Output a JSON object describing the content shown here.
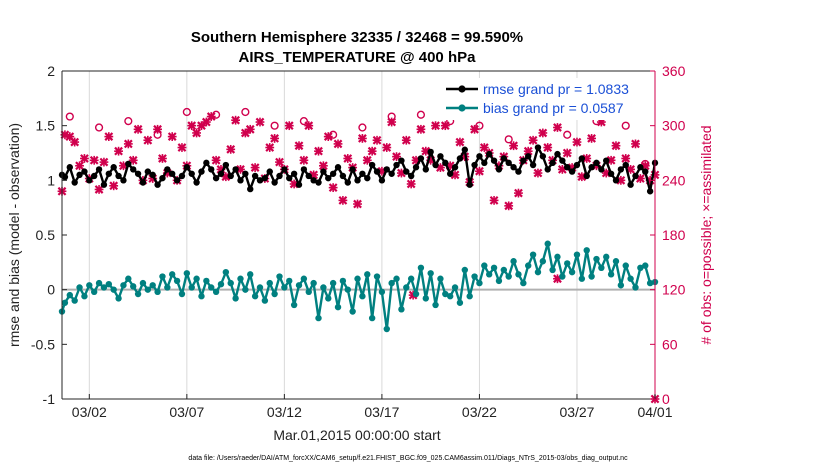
{
  "chart_data": {
    "type": "line",
    "title": "Southern Hemisphere 32335 / 32468 = 99.590%",
    "subtitle": "AIRS_TEMPERATURE @ 400 hPa",
    "xlabel": "Mar.01,2015 00:00:00 start",
    "ylabel": "rmse and bias (model - observation)",
    "y2label": "# of obs: o=possible; ×=assimilated",
    "footnote": "data file: /Users/raeder/DAI/ATM_forcXX/CAM6_setup/f.e21.FHIST_BGC.f09_025.CAM6assim.011/Diags_NTrS_2015-03/obs_diag_output.nc",
    "xlim": [
      0.6,
      31.0
    ],
    "ylim": [
      -1,
      2
    ],
    "y2lim": [
      0,
      360
    ],
    "x_ticks": [
      2,
      7,
      12,
      17,
      22,
      27,
      31
    ],
    "x_tick_labels": [
      "03/02",
      "03/07",
      "03/12",
      "03/17",
      "03/22",
      "03/27",
      "04/01"
    ],
    "y_ticks": [
      -1,
      -0.5,
      0,
      0.5,
      1,
      1.5,
      2
    ],
    "y_tick_labels": [
      "-1",
      "-0.5",
      "0",
      "0.5",
      "1",
      "1.5",
      "2"
    ],
    "y2_ticks": [
      0,
      60,
      120,
      180,
      240,
      300,
      360
    ],
    "y2_tick_labels": [
      "0",
      "60",
      "120",
      "180",
      "240",
      "300",
      "360"
    ],
    "legend_position": "top-right",
    "grid": "vertical",
    "colors": {
      "rmse": "#000000",
      "bias": "#008080",
      "obs": "#d0004d",
      "zero_line": "#b0b0b0",
      "grid": "#d9d9d9"
    },
    "series": [
      {
        "name": "rmse grand pr = 1.0833",
        "axis": "left",
        "x": [
          0.5,
          0.75,
          1.0,
          1.25,
          1.5,
          1.75,
          2.0,
          2.25,
          2.5,
          2.75,
          3.0,
          3.25,
          3.5,
          3.75,
          4.0,
          4.25,
          4.5,
          4.75,
          5.0,
          5.25,
          5.5,
          5.75,
          6.0,
          6.25,
          6.5,
          6.75,
          7.0,
          7.25,
          7.5,
          7.75,
          8.0,
          8.25,
          8.5,
          8.75,
          9.0,
          9.25,
          9.5,
          9.75,
          10.0,
          10.25,
          10.5,
          10.75,
          11.0,
          11.25,
          11.5,
          11.75,
          12.0,
          12.25,
          12.5,
          12.75,
          13.0,
          13.25,
          13.5,
          13.75,
          14.0,
          14.25,
          14.5,
          14.75,
          15.0,
          15.25,
          15.5,
          15.75,
          16.0,
          16.25,
          16.5,
          16.75,
          17.0,
          17.25,
          17.5,
          17.75,
          18.0,
          18.25,
          18.5,
          18.75,
          19.0,
          19.25,
          19.5,
          19.75,
          20.0,
          20.25,
          20.5,
          20.75,
          21.0,
          21.25,
          21.5,
          21.75,
          22.0,
          22.25,
          22.5,
          22.75,
          23.0,
          23.25,
          23.5,
          23.75,
          24.0,
          24.25,
          24.5,
          24.75,
          25.0,
          25.25,
          25.5,
          25.75,
          26.0,
          26.25,
          26.5,
          26.75,
          27.0,
          27.25,
          27.5,
          27.75,
          28.0,
          28.25,
          28.5,
          28.75,
          29.0,
          29.25,
          29.5,
          29.75,
          30.0,
          30.25,
          30.5,
          30.75,
          31.0
        ],
        "values": [
          1.05,
          1.03,
          1.12,
          0.98,
          1.05,
          1.08,
          1.0,
          1.04,
          1.1,
          0.96,
          1.06,
          1.12,
          1.04,
          1.0,
          1.15,
          1.1,
          1.06,
          0.98,
          1.08,
          1.05,
          0.96,
          1.02,
          1.1,
          1.06,
          1.0,
          1.04,
          1.12,
          1.06,
          0.98,
          1.08,
          1.16,
          1.1,
          1.02,
          1.06,
          1.14,
          1.04,
          1.1,
          1.0,
          1.06,
          0.92,
          1.04,
          1.0,
          1.02,
          1.08,
          0.98,
          1.04,
          1.1,
          1.02,
          1.06,
          0.96,
          1.1,
          1.04,
          1.0,
          0.98,
          1.08,
          1.02,
          1.06,
          1.12,
          1.04,
          0.98,
          1.1,
          1.0,
          1.06,
          1.02,
          1.14,
          1.08,
          1.0,
          1.1,
          1.06,
          1.14,
          1.18,
          1.08,
          1.04,
          1.12,
          1.2,
          1.1,
          1.26,
          1.14,
          1.22,
          1.16,
          1.06,
          1.12,
          1.2,
          1.28,
          0.96,
          1.14,
          1.22,
          1.16,
          1.24,
          1.18,
          1.1,
          1.2,
          1.16,
          1.12,
          1.08,
          1.18,
          1.22,
          1.14,
          1.3,
          1.22,
          1.1,
          1.16,
          1.24,
          1.18,
          1.12,
          1.08,
          1.14,
          1.2,
          1.04,
          1.12,
          1.16,
          1.1,
          1.18,
          1.06,
          1.0,
          1.1,
          1.14,
          0.96,
          1.04,
          1.12,
          1.08,
          0.9,
          1.16
        ]
      },
      {
        "name": "bias grand pr = 0.0587",
        "axis": "left",
        "x": [
          0.5,
          0.75,
          1.0,
          1.25,
          1.5,
          1.75,
          2.0,
          2.25,
          2.5,
          2.75,
          3.0,
          3.25,
          3.5,
          3.75,
          4.0,
          4.25,
          4.5,
          4.75,
          5.0,
          5.25,
          5.5,
          5.75,
          6.0,
          6.25,
          6.5,
          6.75,
          7.0,
          7.25,
          7.5,
          7.75,
          8.0,
          8.25,
          8.5,
          8.75,
          9.0,
          9.25,
          9.5,
          9.75,
          10.0,
          10.25,
          10.5,
          10.75,
          11.0,
          11.25,
          11.5,
          11.75,
          12.0,
          12.25,
          12.5,
          12.75,
          13.0,
          13.25,
          13.5,
          13.75,
          14.0,
          14.25,
          14.5,
          14.75,
          15.0,
          15.25,
          15.5,
          15.75,
          16.0,
          16.25,
          16.5,
          16.75,
          17.0,
          17.25,
          17.5,
          17.75,
          18.0,
          18.25,
          18.5,
          18.75,
          19.0,
          19.25,
          19.5,
          19.75,
          20.0,
          20.25,
          20.5,
          20.75,
          21.0,
          21.25,
          21.5,
          21.75,
          22.0,
          22.25,
          22.5,
          22.75,
          23.0,
          23.25,
          23.5,
          23.75,
          24.0,
          24.25,
          24.5,
          24.75,
          25.0,
          25.25,
          25.5,
          25.75,
          26.0,
          26.25,
          26.5,
          26.75,
          27.0,
          27.25,
          27.5,
          27.75,
          28.0,
          28.25,
          28.5,
          28.75,
          29.0,
          29.25,
          29.5,
          29.75,
          30.0,
          30.25,
          30.5,
          30.75,
          31.0
        ],
        "values": [
          -0.2,
          -0.12,
          -0.05,
          -0.1,
          0.02,
          -0.06,
          0.04,
          -0.02,
          0.06,
          0.02,
          0.05,
          0.0,
          -0.08,
          0.04,
          0.1,
          0.03,
          -0.04,
          0.06,
          0.0,
          0.04,
          -0.02,
          0.12,
          0.02,
          0.14,
          0.08,
          -0.04,
          0.15,
          0.02,
          0.1,
          -0.06,
          0.08,
          0.02,
          -0.02,
          0.05,
          0.16,
          0.06,
          -0.08,
          0.1,
          0.0,
          0.14,
          -0.06,
          0.02,
          -0.1,
          0.06,
          -0.04,
          0.12,
          0.02,
          0.08,
          -0.14,
          0.04,
          0.1,
          -0.02,
          0.06,
          -0.26,
          0.02,
          -0.08,
          0.06,
          -0.16,
          0.08,
          0.0,
          -0.2,
          0.1,
          -0.06,
          0.14,
          -0.26,
          0.12,
          -0.02,
          -0.36,
          0.06,
          0.1,
          -0.18,
          0.02,
          0.1,
          -0.04,
          0.2,
          -0.08,
          0.15,
          -0.14,
          0.1,
          -0.04,
          -0.06,
          0.02,
          -0.12,
          0.18,
          -0.06,
          0.12,
          0.06,
          0.22,
          0.14,
          0.2,
          0.08,
          0.18,
          0.12,
          0.26,
          0.14,
          0.06,
          0.22,
          0.32,
          0.16,
          0.26,
          0.42,
          0.18,
          0.3,
          0.12,
          0.24,
          0.16,
          0.32,
          0.1,
          0.36,
          0.12,
          0.28,
          0.2,
          0.3,
          0.14,
          0.26,
          0.04,
          0.22,
          0.1,
          0.02,
          0.2,
          0.22,
          0.06,
          0.07
        ]
      },
      {
        "name": "obs possible",
        "axis": "right",
        "x": [
          1.0,
          2.5,
          4.0,
          5.5,
          7.0,
          8.5,
          10.0,
          11.5,
          13.0,
          14.5,
          16.0,
          17.5,
          19.0,
          20.5,
          22.0,
          23.5,
          25.0,
          26.5,
          28.0,
          29.5,
          30.5
        ],
        "values": [
          310,
          298,
          305,
          290,
          315,
          312,
          315,
          300,
          305,
          290,
          298,
          310,
          312,
          305,
          300,
          285,
          312,
          290,
          305,
          300,
          258
        ]
      },
      {
        "name": "obs assimilated",
        "axis": "right",
        "x": [
          0.5,
          0.75,
          1.0,
          1.25,
          1.5,
          1.75,
          2.0,
          2.25,
          2.5,
          2.75,
          3.0,
          3.25,
          3.5,
          3.75,
          4.0,
          4.25,
          4.5,
          4.75,
          5.0,
          5.25,
          5.5,
          5.75,
          6.0,
          6.25,
          6.5,
          6.75,
          7.0,
          7.25,
          7.5,
          7.75,
          8.0,
          8.25,
          8.5,
          8.75,
          9.0,
          9.25,
          9.5,
          9.75,
          10.0,
          10.25,
          10.5,
          10.75,
          11.0,
          11.25,
          11.5,
          11.75,
          12.0,
          12.25,
          12.5,
          12.75,
          13.0,
          13.25,
          13.5,
          13.75,
          14.0,
          14.25,
          14.5,
          14.75,
          15.0,
          15.25,
          15.5,
          15.75,
          16.0,
          16.25,
          16.5,
          16.75,
          17.0,
          17.25,
          17.5,
          17.75,
          18.0,
          18.25,
          18.5,
          18.75,
          19.0,
          19.25,
          19.5,
          19.75,
          20.0,
          20.25,
          20.5,
          20.75,
          21.0,
          21.25,
          21.5,
          21.75,
          22.0,
          22.25,
          22.5,
          22.75,
          23.0,
          23.25,
          23.5,
          23.75,
          24.0,
          24.25,
          24.5,
          24.75,
          25.0,
          25.25,
          25.5,
          25.75,
          26.0,
          26.25,
          26.5,
          26.75,
          27.0,
          27.25,
          27.5,
          27.75,
          28.0,
          28.25,
          28.5,
          28.75,
          29.0,
          29.25,
          29.5,
          29.75,
          30.0,
          30.25,
          30.5,
          30.75,
          31.0
        ],
        "values": [
          228,
          290,
          288,
          282,
          256,
          264,
          242,
          262,
          230,
          260,
          288,
          234,
          272,
          256,
          280,
          262,
          296,
          240,
          284,
          242,
          296,
          264,
          248,
          288,
          240,
          276,
          256,
          300,
          292,
          300,
          304,
          310,
          262,
          252,
          244,
          274,
          306,
          252,
          292,
          296,
          254,
          304,
          242,
          276,
          286,
          260,
          252,
          300,
          236,
          278,
          262,
          300,
          246,
          272,
          256,
          288,
          232,
          280,
          218,
          264,
          254,
          214,
          286,
          262,
          272,
          284,
          250,
          276,
          304,
          266,
          248,
          284,
          236,
          262,
          296,
          272,
          262,
          300,
          254,
          300,
          256,
          246,
          282,
          266,
          238,
          296,
          250,
          276,
          270,
          218,
          256,
          266,
          212,
          278,
          226,
          262,
          272,
          284,
          248,
          292,
          276,
          262,
          298,
          252,
          270,
          254,
          282,
          244,
          264,
          286,
          256,
          304,
          248,
          262,
          278,
          240,
          264,
          252,
          280,
          242,
          256,
          240,
          246
        ]
      }
    ],
    "annotations": [
      {
        "name": "obs assimilated outlier",
        "axis": "right",
        "x": 18.6,
        "value": 114
      },
      {
        "name": "obs assimilated outlier",
        "axis": "right",
        "x": 26.0,
        "value": 132
      },
      {
        "name": "obs assimilated outlier",
        "axis": "right",
        "x": 31.0,
        "value": 0
      }
    ]
  }
}
